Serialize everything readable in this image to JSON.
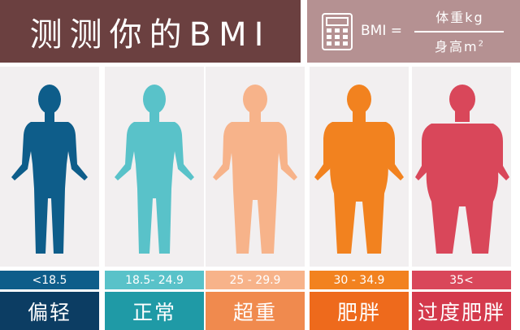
{
  "header": {
    "title": "测测你的BMI",
    "formula_lhs": "BMI =",
    "formula_numerator": "体重kg",
    "formula_denominator": "身高m",
    "formula_denominator_exp": "2"
  },
  "categories": [
    {
      "range": "<18.5",
      "label": "偏轻",
      "color": "#0e5d8a",
      "label_bg": "#0c3d63"
    },
    {
      "range": "18.5- 24.9",
      "label": "正常",
      "color": "#59c2c9",
      "label_bg": "#1f9aa6"
    },
    {
      "range": "25 - 29.9",
      "label": "超重",
      "color": "#f7b38a",
      "label_bg": "#f08a4e"
    },
    {
      "range": "30 - 34.9",
      "label": "肥胖",
      "color": "#f2821f",
      "label_bg": "#ee6a1c"
    },
    {
      "range": "35<",
      "label": "过度肥胖",
      "color": "#d9475a",
      "label_bg": "#d43a4c"
    }
  ],
  "icons": [
    "calculator-icon",
    "body-silhouette-icon"
  ]
}
